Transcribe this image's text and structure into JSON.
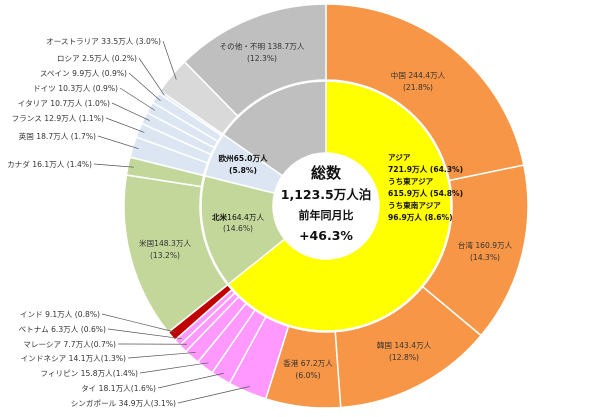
{
  "chart_data": {
    "type": "pie",
    "title": "",
    "center": {
      "line1": "総数",
      "line2": "1,123.5万人泊",
      "line3": "前年同月比",
      "line4": "+46.3%"
    },
    "outer_ring": [
      {
        "label": "中国 244.4万人",
        "pct": "(21.8%)",
        "value": 244.4,
        "color": "#F79646",
        "region": "asia"
      },
      {
        "label": "台湾 160.9万人",
        "pct": "(14.3%)",
        "value": 160.9,
        "color": "#F79646",
        "region": "asia"
      },
      {
        "label": "韓国 143.4万人",
        "pct": "(12.8%)",
        "value": 143.4,
        "color": "#F79646",
        "region": "asia"
      },
      {
        "label": "香港 67.2万人",
        "pct": "(6.0%)",
        "value": 67.2,
        "color": "#F79646",
        "region": "asia"
      },
      {
        "label": "シンガポール 34.9万人(3.1%)",
        "value": 34.9,
        "color": "#FF99FF",
        "region": "asia"
      },
      {
        "label": "タイ 18.1万人(1.6%)",
        "value": 18.1,
        "color": "#FF99FF",
        "region": "asia"
      },
      {
        "label": "フィリピン 15.8万人(1.4%)",
        "value": 15.8,
        "color": "#FF99FF",
        "region": "asia"
      },
      {
        "label": "インドネシア 14.1万人(1.3%)",
        "value": 14.1,
        "color": "#FF99FF",
        "region": "asia"
      },
      {
        "label": "マレーシア 7.7万人(0.7%)",
        "value": 7.7,
        "color": "#FF99FF",
        "region": "asia"
      },
      {
        "label": "ベトナム 6.3万人 (0.6%)",
        "value": 6.3,
        "color": "#FF99FF",
        "region": "asia"
      },
      {
        "label": "インド 9.1万人 (0.8%)",
        "value": 9.1,
        "color": "#C00000",
        "region": "asia"
      },
      {
        "label": "米国148.3万人",
        "pct": "(13.2%)",
        "value": 148.3,
        "color": "#C4D79B",
        "region": "na"
      },
      {
        "label": "カナダ 16.1万人 (1.4%)",
        "value": 16.1,
        "color": "#C4D79B",
        "region": "na"
      },
      {
        "label": "英国 18.7万人 (1.7%)",
        "value": 18.7,
        "color": "#DCE6F2",
        "region": "eu"
      },
      {
        "label": "フランス 12.9万人 (1.1%)",
        "value": 12.9,
        "color": "#DCE6F2",
        "region": "eu"
      },
      {
        "label": "イタリア 10.7万人 (1.0%)",
        "value": 10.7,
        "color": "#DCE6F2",
        "region": "eu"
      },
      {
        "label": "ドイツ 10.3万人 (0.9%)",
        "value": 10.3,
        "color": "#DCE6F2",
        "region": "eu"
      },
      {
        "label": "スペイン 9.9万人 (0.9%)",
        "value": 9.9,
        "color": "#DCE6F2",
        "region": "eu"
      },
      {
        "label": "ロシア 2.5万人 (0.2%)",
        "value": 2.5,
        "color": "#DCE6F2",
        "region": "eu"
      },
      {
        "label": "オーストラリア 33.5万人 (3.0%)",
        "value": 33.5,
        "color": "#D9D9D9",
        "region": "other"
      },
      {
        "label": "その他・不明 138.7万人",
        "pct": "(12.3%)",
        "value": 138.7,
        "color": "#BFBFBF",
        "region": "other"
      }
    ],
    "inner_ring": [
      {
        "key": "asia",
        "value": 721.9,
        "color": "#FFFF00",
        "lines": [
          "アジア",
          "721.9万人 (64.3%)",
          "うち東アジア",
          "615.9万人 (54.8%)",
          "うち東南アジア",
          "96.9万人 (8.6%)"
        ]
      },
      {
        "key": "na",
        "value": 164.4,
        "color": "#C4D79B",
        "name": "北米",
        "detail": "164.4万人",
        "pct": "(14.6%)"
      },
      {
        "key": "eu",
        "value": 65.0,
        "color": "#DCE6F2",
        "name": "欧州",
        "detail": "65.0万人",
        "pct": "(5.8%)"
      },
      {
        "key": "other",
        "value": 172.2,
        "color": "#BFBFBF"
      }
    ]
  }
}
